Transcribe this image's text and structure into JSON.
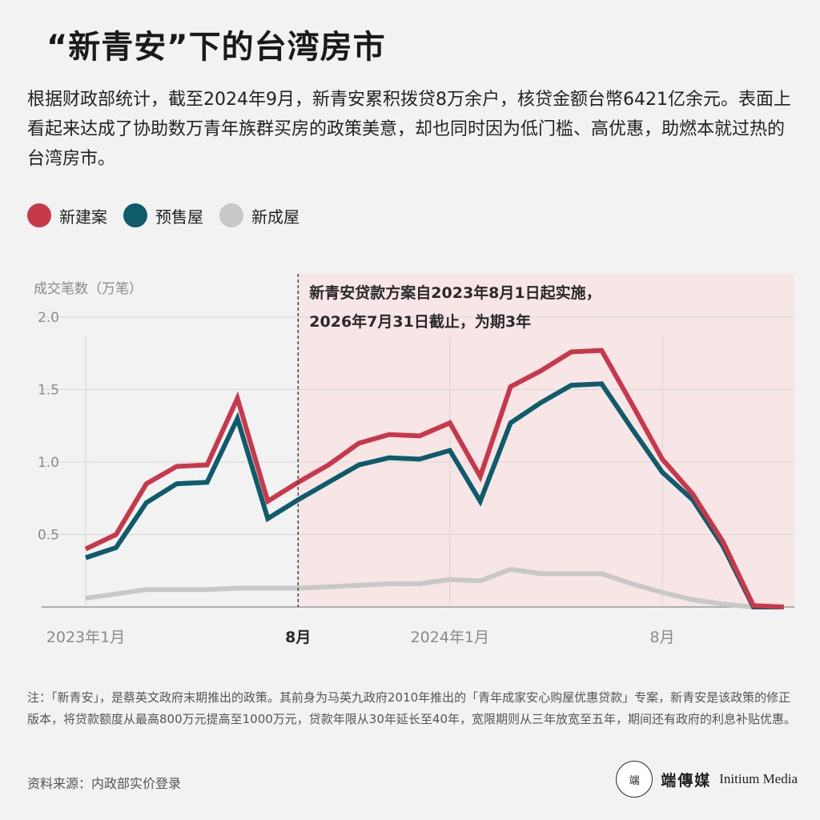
{
  "title": "“新青安”下的台湾房市",
  "subtitle": "根据财政部统计，截至2024年9月，新青安累积拨贷8万余户，核贷金额台幣6421亿余元。表面上看起来达成了协助数万青年族群买房的政策美意，却也同时因为低门槛、高优惠，助燃本就过热的台湾房市。",
  "legend": [
    {
      "label": "新建案",
      "color": "#c8384b"
    },
    {
      "label": "预售屋",
      "color": "#0e5c6b"
    },
    {
      "label": "新成屋",
      "color": "#c8c8c8"
    }
  ],
  "chart_data": {
    "type": "line",
    "ylabel": "成交笔数（万笔）",
    "ylim": [
      0,
      2.0
    ],
    "yticks": [
      0.5,
      1.0,
      1.5,
      2.0
    ],
    "ytick_labels": [
      "0.5",
      "1.0",
      "1.5",
      "2.0"
    ],
    "x": [
      "2023-01",
      "2023-02",
      "2023-03",
      "2023-04",
      "2023-05",
      "2023-06",
      "2023-07",
      "2023-08",
      "2023-09",
      "2023-10",
      "2023-11",
      "2023-12",
      "2024-01",
      "2024-02",
      "2024-03",
      "2024-04",
      "2024-05",
      "2024-06",
      "2024-07",
      "2024-08",
      "2024-09",
      "2024-10",
      "2024-11",
      "2024-12"
    ],
    "xtick_labels": [
      {
        "x": "2023-01",
        "label": "2023年1月",
        "bold": false
      },
      {
        "x": "2023-08",
        "label": "8月",
        "bold": true
      },
      {
        "x": "2024-01",
        "label": "2024年1月",
        "bold": false
      },
      {
        "x": "2024-08",
        "label": "8月",
        "bold": false
      }
    ],
    "series": [
      {
        "name": "新成屋",
        "color": "#c8c8c8",
        "values": [
          0.06,
          0.09,
          0.12,
          0.12,
          0.12,
          0.13,
          0.13,
          0.13,
          0.14,
          0.15,
          0.16,
          0.16,
          0.19,
          0.18,
          0.26,
          0.23,
          0.23,
          0.23,
          0.16,
          0.1,
          0.05,
          0.02,
          0.0,
          null
        ]
      },
      {
        "name": "预售屋",
        "color": "#0e5c6b",
        "values": [
          0.34,
          0.41,
          0.72,
          0.85,
          0.86,
          1.3,
          0.61,
          0.74,
          0.86,
          0.98,
          1.03,
          1.02,
          1.08,
          0.73,
          1.27,
          1.41,
          1.53,
          1.54,
          1.23,
          0.93,
          0.74,
          0.42,
          0.0,
          0.0
        ]
      },
      {
        "name": "新建案",
        "color": "#c8384b",
        "values": [
          0.4,
          0.5,
          0.85,
          0.97,
          0.98,
          1.44,
          0.73,
          0.86,
          0.98,
          1.13,
          1.19,
          1.18,
          1.27,
          0.9,
          1.52,
          1.63,
          1.76,
          1.77,
          1.4,
          1.02,
          0.78,
          0.45,
          0.01,
          0.0
        ]
      }
    ],
    "highlight": {
      "from": "2023-08",
      "to": "2024-12",
      "color": "#f8e6e6"
    },
    "annotation": [
      "新青安贷款方案自2023年8月1日起实施，",
      "2026年7月31日截止，为期3年"
    ],
    "grid": true
  },
  "note": "注：「新青安」，是蔡英文政府末期推出的政策。其前身为马英九政府2010年推出的「青年成家安心购屋优惠贷款」专案，新青安是该政策的修正版本，将贷款额度从最高800万元提高至1000万元，贷款年限从30年延长至40年，宽限期则从三年放宽至五年，期间还有政府的利息补贴优惠。",
  "source": "资料来源：内政部实价登录",
  "brand": {
    "logo_text": "端",
    "cn": "端傳媒",
    "en": "Initium Media"
  }
}
